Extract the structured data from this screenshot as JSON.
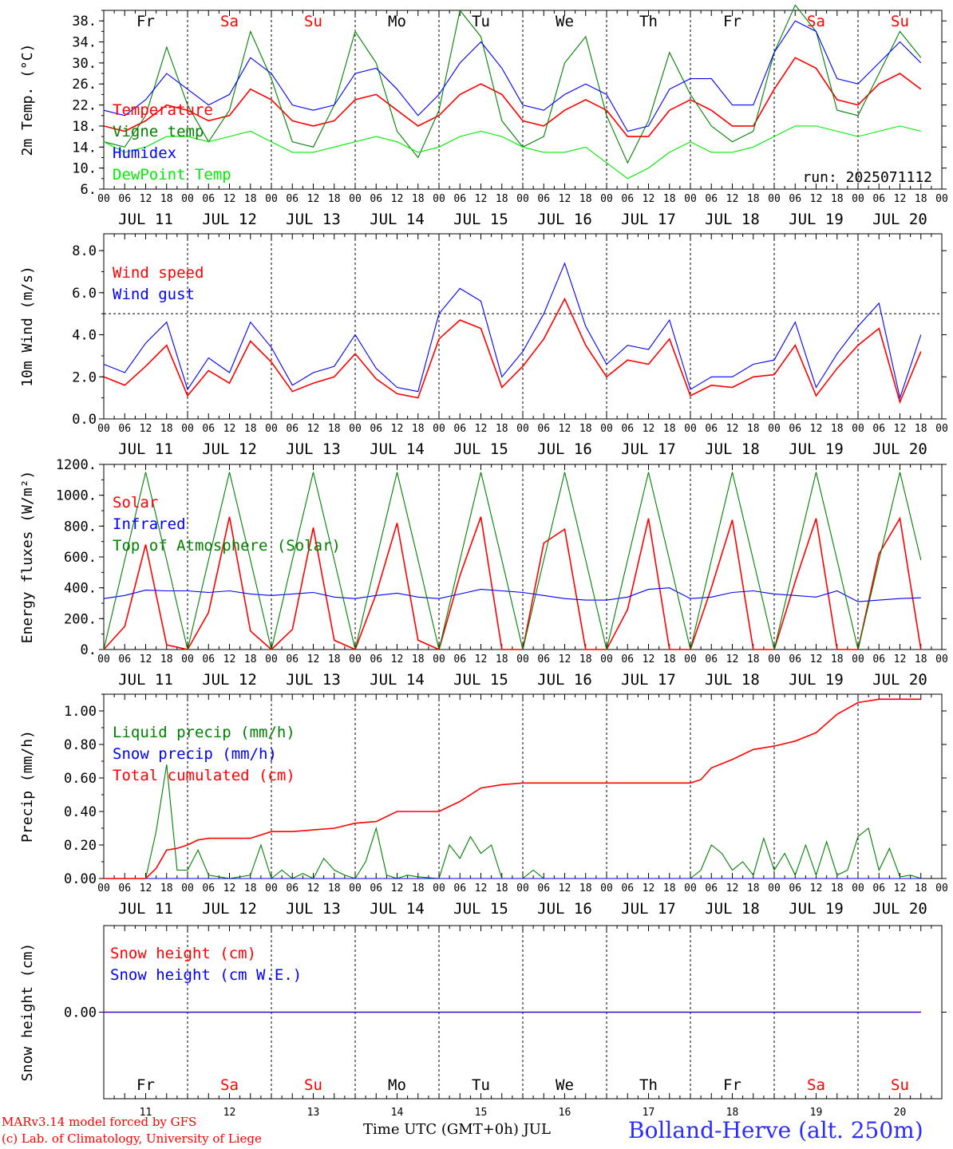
{
  "chart_data": [
    {
      "type": "line",
      "ylabel": "2m Temp. (°C)",
      "yticks": [
        "6.",
        "10.",
        "14.",
        "18.",
        "22.",
        "26.",
        "30.",
        "34.",
        "38."
      ],
      "ylim": [
        6,
        40
      ],
      "legend": "left",
      "run_label": "run: 2025071112",
      "x_hours": [
        0,
        6,
        12,
        18,
        24,
        30,
        36,
        42,
        48,
        54,
        60,
        66,
        72,
        78,
        84,
        90,
        96,
        102,
        108,
        114,
        120,
        126,
        132,
        138,
        144,
        150,
        156,
        162,
        168,
        174,
        180,
        186,
        192,
        198,
        204,
        210,
        216,
        222,
        228,
        234
      ],
      "series": [
        {
          "name": "Temperature",
          "color": "#ff0000",
          "values": [
            18,
            17,
            19,
            22,
            21,
            19,
            20,
            25,
            23,
            19,
            18,
            19,
            23,
            24,
            21,
            18,
            20,
            24,
            26,
            24,
            19,
            18,
            21,
            23,
            21,
            16,
            16,
            21,
            23,
            21,
            18,
            18,
            25,
            31,
            29,
            23,
            22,
            26,
            28,
            25
          ]
        },
        {
          "name": "Vigne temp",
          "color": "#008000",
          "values": [
            15,
            14,
            20,
            33,
            22,
            15,
            21,
            36,
            27,
            15,
            14,
            22,
            36,
            30,
            17,
            12,
            21,
            40,
            35,
            19,
            14,
            16,
            30,
            35,
            20,
            11,
            19,
            32,
            24,
            18,
            15,
            17,
            32,
            41,
            36,
            21,
            20,
            28,
            36,
            31
          ]
        },
        {
          "name": "Humidex",
          "color": "#0000ff",
          "values": [
            21,
            20,
            23,
            28,
            25,
            22,
            24,
            31,
            28,
            22,
            21,
            22,
            28,
            29,
            25,
            20,
            24,
            30,
            34,
            29,
            22,
            21,
            24,
            26,
            24,
            17,
            18,
            25,
            27,
            27,
            22,
            22,
            32,
            38,
            36,
            27,
            26,
            30,
            34,
            30
          ]
        },
        {
          "name": "DewPoint Temp",
          "color": "#00ee00",
          "values": [
            15,
            13,
            14,
            16,
            16,
            15,
            16,
            17,
            15,
            13,
            13,
            14,
            15,
            16,
            15,
            13,
            14,
            16,
            17,
            16,
            14,
            13,
            13,
            14,
            11,
            8,
            10,
            13,
            15,
            13,
            13,
            14,
            16,
            18,
            18,
            17,
            16,
            17,
            18,
            17
          ]
        }
      ]
    },
    {
      "type": "line",
      "ylabel": "10m Wind (m/s)",
      "yticks": [
        "0.0",
        "2.0",
        "4.0",
        "6.0",
        "8.0"
      ],
      "ylim": [
        0,
        8.8
      ],
      "reference_line": 5.0,
      "legend": "left",
      "x_hours": [
        0,
        6,
        12,
        18,
        24,
        30,
        36,
        42,
        48,
        54,
        60,
        66,
        72,
        78,
        84,
        90,
        96,
        102,
        108,
        114,
        120,
        126,
        132,
        138,
        144,
        150,
        156,
        162,
        168,
        174,
        180,
        186,
        192,
        198,
        204,
        210,
        216,
        222,
        228,
        234
      ],
      "series": [
        {
          "name": "Wind speed",
          "color": "#ff0000",
          "values": [
            2.0,
            1.6,
            2.5,
            3.5,
            1.1,
            2.3,
            1.7,
            3.7,
            2.7,
            1.3,
            1.7,
            2.0,
            3.1,
            1.9,
            1.2,
            1.0,
            3.8,
            4.7,
            4.3,
            1.5,
            2.5,
            3.8,
            5.7,
            3.5,
            2.0,
            2.8,
            2.6,
            3.8,
            1.1,
            1.6,
            1.5,
            2.0,
            2.1,
            3.5,
            1.1,
            2.4,
            3.5,
            4.3,
            0.8,
            3.2
          ]
        },
        {
          "name": "Wind gust",
          "color": "#0000ff",
          "values": [
            2.6,
            2.2,
            3.6,
            4.6,
            1.4,
            2.9,
            2.2,
            4.6,
            3.4,
            1.6,
            2.2,
            2.5,
            4.0,
            2.4,
            1.5,
            1.3,
            5.0,
            6.2,
            5.6,
            2.0,
            3.2,
            5.0,
            7.4,
            4.4,
            2.6,
            3.5,
            3.3,
            4.7,
            1.4,
            2.0,
            2.0,
            2.6,
            2.8,
            4.6,
            1.5,
            3.1,
            4.4,
            5.5,
            1.0,
            4.0
          ]
        }
      ]
    },
    {
      "type": "line",
      "ylabel": "Energy fluxes (W/m²)",
      "yticks": [
        "0.",
        "200.",
        "400.",
        "600.",
        "800.",
        "1000.",
        "1200."
      ],
      "ylim": [
        0,
        1200
      ],
      "legend": "left",
      "x_hours": [
        0,
        6,
        12,
        18,
        24,
        30,
        36,
        42,
        48,
        54,
        60,
        66,
        72,
        78,
        84,
        90,
        96,
        102,
        108,
        114,
        120,
        126,
        132,
        138,
        144,
        150,
        156,
        162,
        168,
        174,
        180,
        186,
        192,
        198,
        204,
        210,
        216,
        222,
        228,
        234
      ],
      "series": [
        {
          "name": "Solar",
          "color": "#ff0000",
          "values": [
            0,
            150,
            680,
            30,
            0,
            240,
            860,
            120,
            0,
            130,
            790,
            60,
            0,
            360,
            820,
            60,
            0,
            480,
            860,
            0,
            0,
            690,
            780,
            0,
            0,
            260,
            850,
            0,
            0,
            400,
            840,
            0,
            0,
            440,
            850,
            0,
            0,
            620,
            850,
            0
          ]
        },
        {
          "name": "Infrared",
          "color": "#0000ff",
          "values": [
            330,
            350,
            385,
            380,
            380,
            370,
            380,
            360,
            350,
            360,
            370,
            340,
            330,
            350,
            365,
            340,
            330,
            360,
            390,
            380,
            370,
            350,
            330,
            320,
            320,
            340,
            390,
            400,
            330,
            340,
            370,
            380,
            360,
            350,
            340,
            380,
            310,
            320,
            330,
            335
          ]
        },
        {
          "name": "Top of Atmosphere (Solar)",
          "color": "#008000",
          "values": [
            0,
            580,
            1150,
            580,
            0,
            580,
            1150,
            580,
            0,
            580,
            1150,
            580,
            0,
            580,
            1150,
            580,
            0,
            580,
            1150,
            580,
            0,
            580,
            1150,
            580,
            0,
            580,
            1150,
            580,
            0,
            580,
            1150,
            580,
            0,
            580,
            1150,
            580,
            0,
            580,
            1150,
            580
          ]
        }
      ]
    },
    {
      "type": "line",
      "ylabel": "Precip (mm/h)",
      "yticks": [
        "0.00",
        "0.20",
        "0.40",
        "0.60",
        "0.80",
        "1.00"
      ],
      "ylim": [
        0,
        1.1
      ],
      "legend": "left",
      "series": [
        {
          "name": "Liquid precip (mm/h)",
          "color": "#008000",
          "x_hours": [
            0,
            6,
            9,
            12,
            15,
            18,
            21,
            24,
            27,
            30,
            33,
            36,
            42,
            45,
            48,
            51,
            54,
            57,
            60,
            63,
            66,
            69,
            72,
            75,
            78,
            81,
            84,
            87,
            90,
            96,
            99,
            102,
            105,
            108,
            111,
            114,
            120,
            123,
            126,
            132,
            168,
            171,
            174,
            177,
            180,
            183,
            186,
            189,
            192,
            195,
            198,
            201,
            204,
            207,
            210,
            213,
            216,
            219,
            222,
            225,
            228,
            231,
            234
          ],
          "values": [
            0,
            0,
            0,
            0,
            0.28,
            0.68,
            0.05,
            0.05,
            0.17,
            0.02,
            0.01,
            0,
            0.02,
            0.2,
            0,
            0.05,
            0,
            0.03,
            0,
            0.12,
            0.05,
            0.02,
            0,
            0.1,
            0.3,
            0.02,
            0,
            0.02,
            0.01,
            0,
            0.2,
            0.12,
            0.25,
            0.15,
            0.2,
            0,
            0,
            0.05,
            0,
            0,
            0,
            0.05,
            0.2,
            0.15,
            0.05,
            0.1,
            0.02,
            0.24,
            0.05,
            0.15,
            0.02,
            0.2,
            0.02,
            0.22,
            0.02,
            0.05,
            0.25,
            0.3,
            0.05,
            0.18,
            0.01,
            0.02,
            0
          ]
        },
        {
          "name": "Snow precip (mm/h)",
          "color": "#0000ff",
          "x_hours": [
            0,
            234
          ],
          "values": [
            0,
            0
          ]
        },
        {
          "name": "Total cumulated (cm)",
          "color": "#ff0000",
          "x_hours": [
            0,
            12,
            15,
            18,
            21,
            24,
            27,
            30,
            36,
            42,
            48,
            54,
            60,
            66,
            72,
            78,
            84,
            90,
            96,
            102,
            108,
            114,
            120,
            132,
            168,
            171,
            174,
            180,
            186,
            192,
            198,
            204,
            210,
            216,
            222,
            228,
            234
          ],
          "values": [
            0,
            0,
            0.06,
            0.17,
            0.18,
            0.2,
            0.23,
            0.24,
            0.24,
            0.24,
            0.28,
            0.28,
            0.29,
            0.3,
            0.33,
            0.34,
            0.4,
            0.4,
            0.4,
            0.46,
            0.54,
            0.56,
            0.57,
            0.57,
            0.57,
            0.59,
            0.66,
            0.71,
            0.77,
            0.79,
            0.82,
            0.87,
            0.98,
            1.05,
            1.07,
            1.07,
            1.07
          ]
        }
      ]
    },
    {
      "type": "line",
      "ylabel": "Snow height (cm)",
      "yticks": [
        "0.00"
      ],
      "legend": "left",
      "x_hours": [
        0,
        234
      ],
      "series": [
        {
          "name": "Snow height (cm)",
          "color": "#ff0000",
          "values": [
            0,
            0
          ]
        },
        {
          "name": "Snow height (cm W.E.)",
          "color": "#0000ff",
          "values": [
            0,
            0
          ]
        }
      ]
    }
  ],
  "days": [
    {
      "date_label": "JUL 11",
      "weekday": "Fr",
      "weekend": false,
      "num": "11"
    },
    {
      "date_label": "JUL 12",
      "weekday": "Sa",
      "weekend": true,
      "num": "12"
    },
    {
      "date_label": "JUL 13",
      "weekday": "Su",
      "weekend": true,
      "num": "13"
    },
    {
      "date_label": "JUL 14",
      "weekday": "Mo",
      "weekend": false,
      "num": "14"
    },
    {
      "date_label": "JUL 15",
      "weekday": "Tu",
      "weekend": false,
      "num": "15"
    },
    {
      "date_label": "JUL 16",
      "weekday": "We",
      "weekend": false,
      "num": "16"
    },
    {
      "date_label": "JUL 17",
      "weekday": "Th",
      "weekend": false,
      "num": "17"
    },
    {
      "date_label": "JUL 18",
      "weekday": "Fr",
      "weekend": false,
      "num": "18"
    },
    {
      "date_label": "JUL 19",
      "weekday": "Sa",
      "weekend": true,
      "num": "19"
    },
    {
      "date_label": "JUL 20",
      "weekday": "Su",
      "weekend": true,
      "num": "20"
    }
  ],
  "hour_ticks": [
    "00",
    "06",
    "12",
    "18"
  ],
  "footer": {
    "credit_line1": "MARv3.14 model forced by GFS",
    "credit_line2": "(c) Lab. of Climatology, University of Liege",
    "xaxis_title": "Time UTC (GMT+0h) JUL",
    "station": "Bolland-Herve (alt. 250m)"
  },
  "colors": {
    "weekday": "#000000",
    "weekend": "#ff0000",
    "grid": "#000000"
  }
}
